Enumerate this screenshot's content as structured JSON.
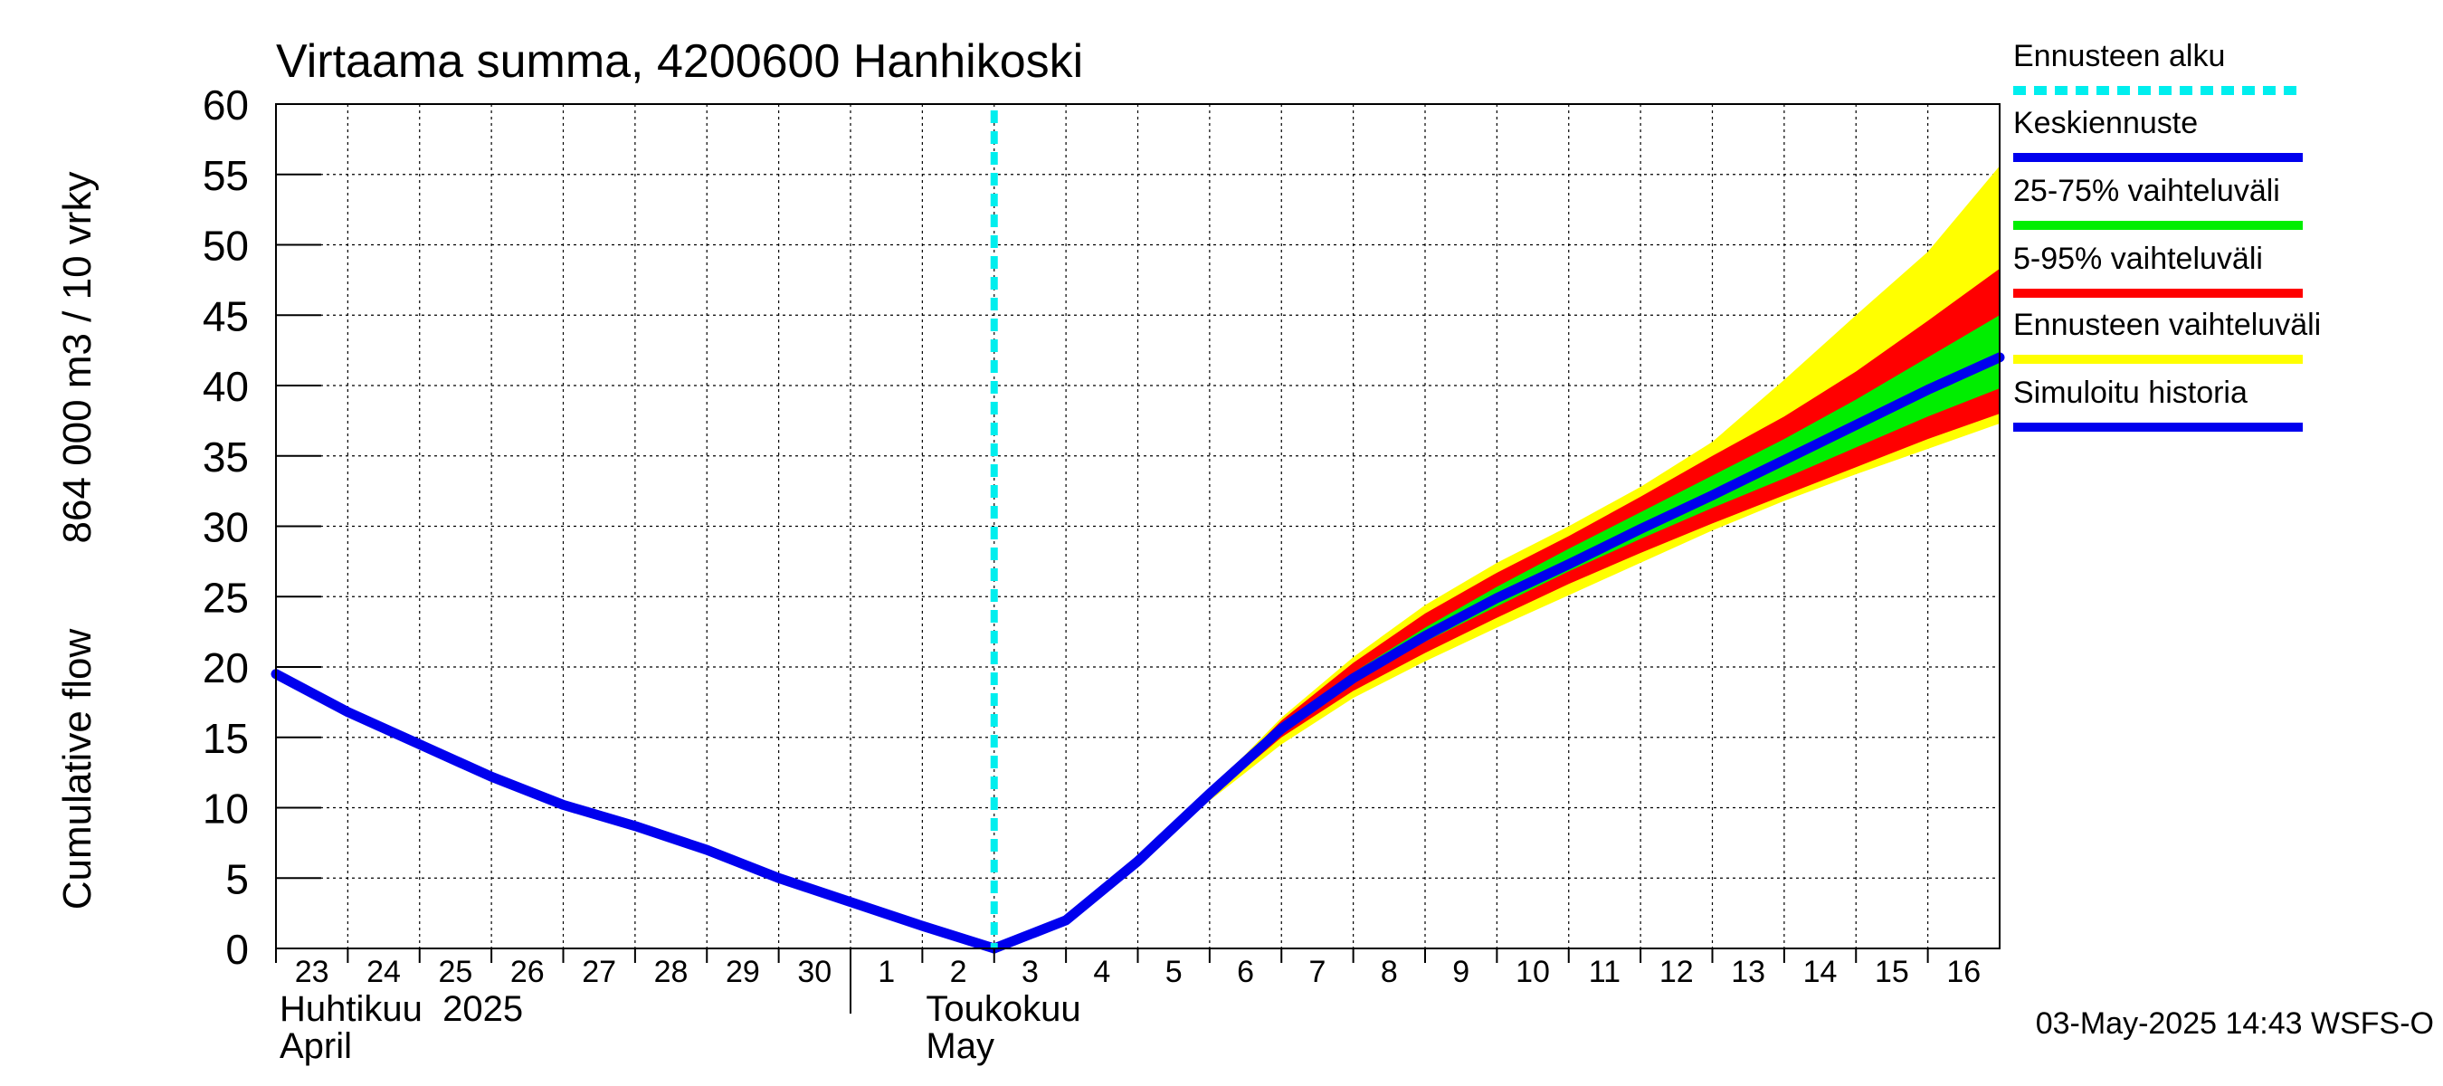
{
  "chart_data": {
    "type": "area",
    "title": "Virtaama summa, 4200600 Hanhikoski",
    "ylabel_fi": "864 000 m3 / 10 vrky",
    "ylabel_en": "Cumulative flow",
    "ylim": [
      0,
      60
    ],
    "yticks": [
      "0",
      "5",
      "10",
      "15",
      "20",
      "25",
      "30",
      "35",
      "40",
      "45",
      "50",
      "55",
      "60"
    ],
    "xlim": [
      0,
      24
    ],
    "x_day_labels": [
      "23",
      "24",
      "25",
      "26",
      "27",
      "28",
      "29",
      "30",
      "1",
      "2",
      "3",
      "4",
      "5",
      "6",
      "7",
      "8",
      "9",
      "10",
      "11",
      "12",
      "13",
      "14",
      "15",
      "16"
    ],
    "month_boundary_x": 8,
    "months": [
      {
        "fi": "Huhtikuu  2025",
        "en": "April",
        "x": 0
      },
      {
        "fi": "Toukokuu",
        "en": "May",
        "x": 9
      }
    ],
    "forecast_start_x": 10,
    "series": [
      {
        "name": "Simuloitu historia",
        "color": "#0000ee",
        "x": [
          0,
          1,
          2,
          3,
          4,
          5,
          6,
          7,
          8,
          9,
          10
        ],
        "values": [
          19.5,
          16.8,
          14.5,
          12.2,
          10.2,
          8.7,
          7.0,
          5.0,
          3.3,
          1.6,
          0.0
        ]
      },
      {
        "name": "Keskiennuste",
        "color": "#0000ee",
        "x": [
          10,
          11,
          12,
          13,
          14,
          15,
          16,
          17,
          18,
          19,
          20,
          21,
          22,
          23,
          24
        ],
        "values": [
          0.0,
          2.0,
          6.2,
          11.0,
          15.6,
          19.2,
          22.2,
          24.9,
          27.3,
          29.8,
          32.2,
          34.7,
          37.2,
          39.7,
          42.0
        ]
      }
    ],
    "bands": [
      {
        "name": "Ennusteen vaihteluväli",
        "color": "#ffff00",
        "x": [
          10,
          11,
          12,
          13,
          14,
          15,
          16,
          17,
          18,
          19,
          20,
          21,
          22,
          23,
          24
        ],
        "upper": [
          0.0,
          2.0,
          6.2,
          11.2,
          16.4,
          20.7,
          24.4,
          27.4,
          30.0,
          32.8,
          36.0,
          40.4,
          45.0,
          49.5,
          55.6
        ],
        "lower": [
          0.0,
          2.0,
          6.2,
          10.5,
          14.5,
          17.8,
          20.4,
          22.8,
          25.1,
          27.4,
          29.7,
          31.8,
          33.7,
          35.5,
          37.3
        ]
      },
      {
        "name": "5-95% vaihteluväli",
        "color": "#ff0000",
        "x": [
          10,
          11,
          12,
          13,
          14,
          15,
          16,
          17,
          18,
          19,
          20,
          21,
          22,
          23,
          24
        ],
        "upper": [
          0.0,
          2.0,
          6.2,
          11.1,
          16.2,
          20.3,
          23.8,
          26.7,
          29.3,
          32.1,
          35.0,
          37.8,
          41.0,
          44.6,
          48.3
        ],
        "lower": [
          0.0,
          2.0,
          6.2,
          10.7,
          15.0,
          18.3,
          21.0,
          23.5,
          25.9,
          28.1,
          30.2,
          32.2,
          34.2,
          36.2,
          38.0
        ]
      },
      {
        "name": "25-75% vaihteluväli",
        "color": "#00ee00",
        "x": [
          10,
          11,
          12,
          13,
          14,
          15,
          16,
          17,
          18,
          19,
          20,
          21,
          22,
          23,
          24
        ],
        "upper": [
          0.0,
          2.0,
          6.2,
          11.0,
          15.8,
          19.6,
          22.8,
          25.7,
          28.4,
          31.0,
          33.6,
          36.2,
          39.0,
          42.0,
          45.0
        ],
        "lower": [
          0.0,
          2.0,
          6.2,
          10.9,
          15.4,
          18.9,
          21.8,
          24.3,
          26.8,
          29.1,
          31.3,
          33.4,
          35.6,
          37.8,
          39.8
        ]
      }
    ],
    "legend": [
      {
        "label": "Ennusteen alku",
        "color": "#00eeee",
        "style": "dashed"
      },
      {
        "label": "Keskiennuste",
        "color": "#0000ee",
        "style": "solid"
      },
      {
        "label": "25-75% vaihteluväli",
        "color": "#00ee00",
        "style": "solid"
      },
      {
        "label": "5-95% vaihteluväli",
        "color": "#ff0000",
        "style": "solid"
      },
      {
        "label": "Ennusteen vaihteluväli",
        "color": "#ffff00",
        "style": "solid"
      },
      {
        "label": "Simuloitu historia",
        "color": "#0000ee",
        "style": "solid"
      }
    ],
    "timestamp": "03-May-2025 14:43 WSFS-O"
  }
}
